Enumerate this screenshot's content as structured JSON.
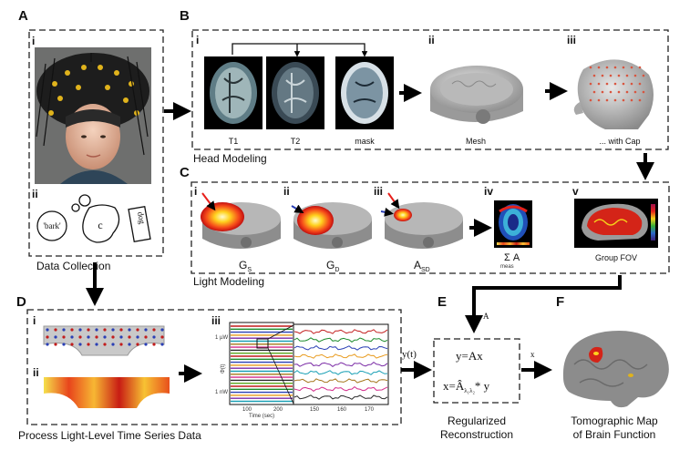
{
  "panels": {
    "a": {
      "letter": "A",
      "sub_i": "i",
      "sub_ii": "ii",
      "caption": "Data Collection",
      "speech_words": [
        "'bark'",
        "c",
        "dog"
      ]
    },
    "b": {
      "letter": "B",
      "sub_i": "i",
      "sub_ii": "ii",
      "sub_iii": "iii",
      "scan_labels": [
        "T1",
        "T2",
        "mask"
      ],
      "mesh_label": "Mesh",
      "cap_label": "... with Cap",
      "caption": "Head Modeling"
    },
    "c": {
      "letter": "C",
      "subs": [
        "i",
        "ii",
        "iii",
        "iv",
        "v"
      ],
      "labels": [
        "G",
        "G",
        "A"
      ],
      "label_subs": [
        "S",
        "D",
        "SD"
      ],
      "sum_label": "Σ A",
      "sum_sub": "meas",
      "fov_label": "Group FOV",
      "caption": "Light Modeling"
    },
    "d": {
      "letter": "D",
      "sub_i": "i",
      "sub_ii": "ii",
      "sub_iii": "iii",
      "caption": "Process Light-Level Time Series Data",
      "plot": {
        "ylabel": "Φ(t)",
        "xlabel": "Time (sec)",
        "ytick_top": "1 µW",
        "ytick_bottom": "1 nW",
        "xticks": [
          "100",
          "200"
        ],
        "zoom_xticks": [
          "150",
          "160",
          "170"
        ]
      }
    },
    "e": {
      "letter": "E",
      "eq1": "y=Ax",
      "eq2": "x=Â",
      "eq2_sub": "λ₁λ₂",
      "eq2_rest": "* y",
      "caption_line1": "Regularized",
      "caption_line2": "Reconstruction"
    },
    "f": {
      "letter": "F",
      "caption_line1": "Tomographic Map",
      "caption_line2": "of Brain Function"
    }
  },
  "connectors": {
    "yt_label": "y(t)",
    "x_label": "x",
    "a_label": "A"
  },
  "colors": {
    "dash_box": "#222222",
    "arrow": "#000000",
    "pointer_red": "#e8201c",
    "pointer_blue": "#2a3fb5",
    "hot": "#ffd21e",
    "brain_red": "#d42418"
  }
}
